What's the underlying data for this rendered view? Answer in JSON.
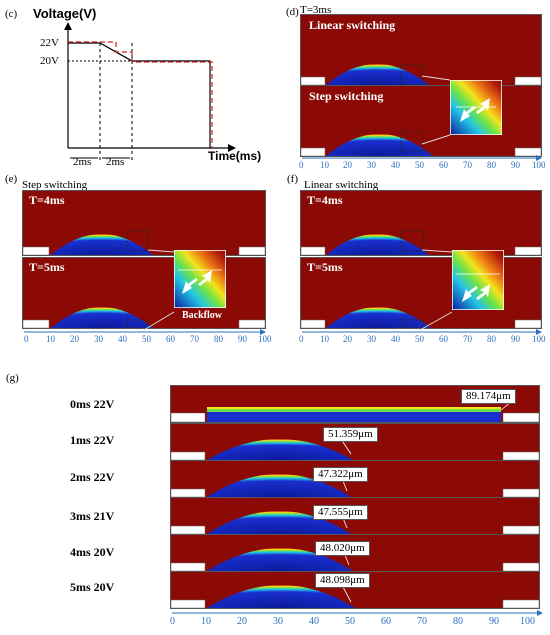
{
  "panel_c": {
    "label": "(c)",
    "ylabel": "Voltage(V)",
    "xlabel": "Time(ms)",
    "tick_22": "22V",
    "tick_20": "20V",
    "span_1": "2ms",
    "span_2": "2ms",
    "colors": {
      "linear": "#000000",
      "step": "#cc2222"
    }
  },
  "panel_d": {
    "label": "(d)",
    "header": "T=3ms",
    "title_top": "Linear switching",
    "title_bottom": "Step switching"
  },
  "panel_e": {
    "label": "(e)",
    "header": "Step switching",
    "title_top": "T=4ms",
    "title_bottom": "T=5ms",
    "inset_label": "Backflow"
  },
  "panel_f": {
    "label": "(f)",
    "header": "Linear switching",
    "title_top": "T=4ms",
    "title_bottom": "T=5ms"
  },
  "axis_ticks": [
    "0",
    "10",
    "20",
    "30",
    "40",
    "50",
    "60",
    "70",
    "80",
    "90",
    "100"
  ],
  "panel_g": {
    "label": "(g)",
    "rows": [
      {
        "label": "0ms 22V",
        "value": "89.174μm"
      },
      {
        "label": "1ms 22V",
        "value": "51.359μm"
      },
      {
        "label": "2ms 22V",
        "value": "47.322μm"
      },
      {
        "label": "3ms 21V",
        "value": "47.555μm"
      },
      {
        "label": "4ms 20V",
        "value": "48.020μm"
      },
      {
        "label": "5ms 20V",
        "value": "48.098μm"
      }
    ]
  },
  "colors": {
    "background_field": "#8b0a05",
    "axis_blue": "#2a6fc0"
  }
}
